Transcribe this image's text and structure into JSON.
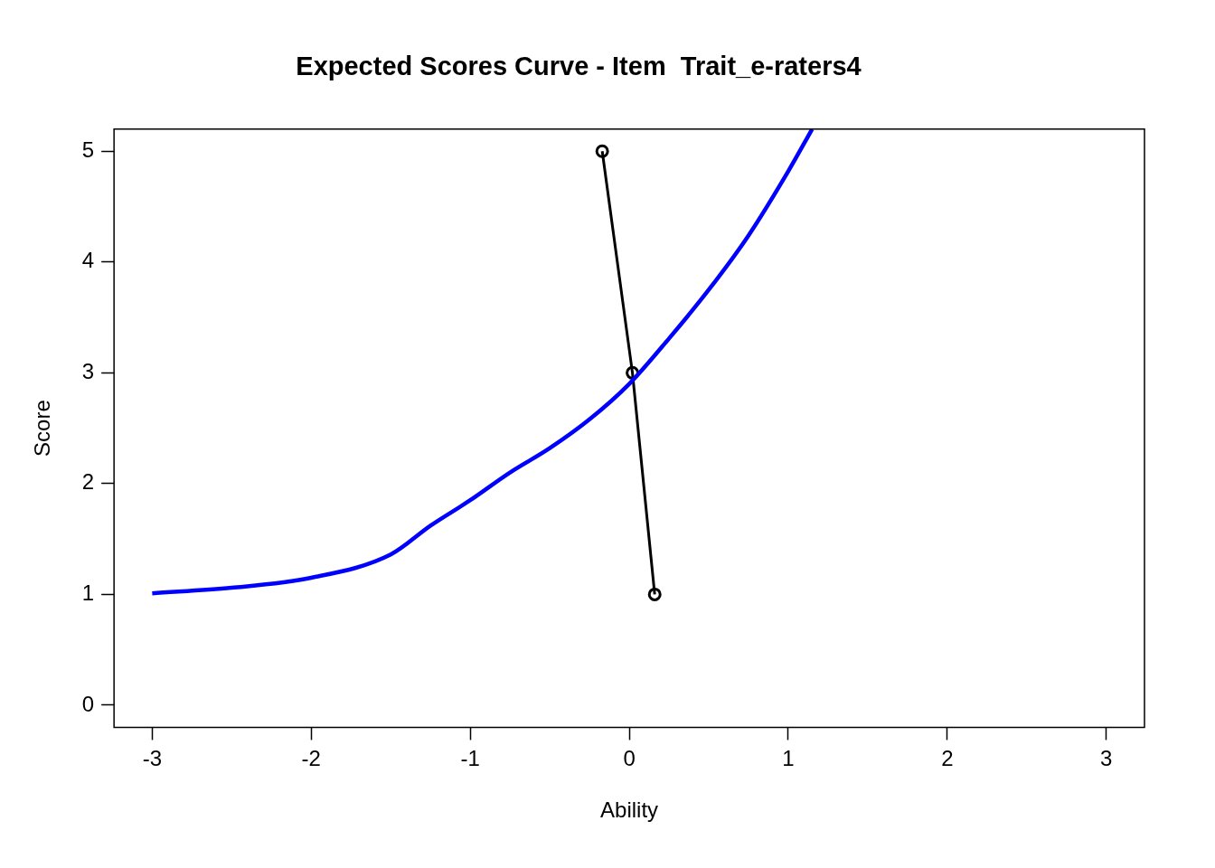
{
  "chart_data": {
    "type": "line",
    "title": "Expected Scores Curve - Item  Trait_e-raters4",
    "xlabel": "Ability",
    "ylabel": "Score",
    "xlim": [
      -3.24,
      3.24
    ],
    "ylim": [
      -0.2,
      5.2
    ],
    "xticks": [
      -3,
      -2,
      -1,
      0,
      1,
      2,
      3
    ],
    "yticks": [
      0,
      1,
      2,
      3,
      4,
      5
    ],
    "grid": false,
    "legend": false,
    "line_style": "solid",
    "series": [
      {
        "color": "#0000ff",
        "marker": "none",
        "x": [
          -3,
          -2.5,
          -2,
          -1.5,
          -1.25,
          -1,
          -0.75,
          -0.5,
          -0.25,
          0,
          0.25,
          0.5,
          0.75,
          1,
          1.15
        ],
        "values": [
          1.01,
          1.06,
          1.15,
          1.36,
          1.62,
          1.85,
          2.1,
          2.32,
          2.58,
          2.9,
          3.31,
          3.75,
          4.24,
          4.82,
          5.2
        ]
      },
      {
        "color": "#000000",
        "marker": "circle",
        "x": [
          -0.17,
          0.02,
          0.16
        ],
        "values": [
          5,
          3,
          1
        ]
      }
    ]
  }
}
